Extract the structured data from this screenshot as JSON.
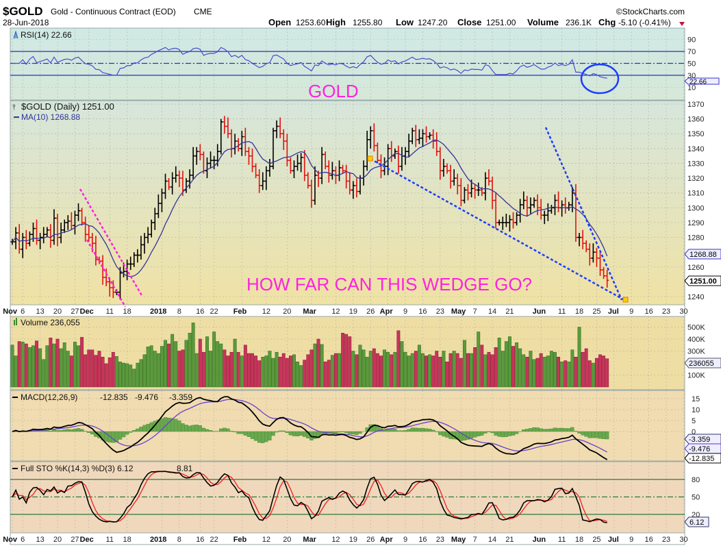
{
  "header": {
    "symbol": "$GOLD",
    "name": "Gold - Continuous Contract (EOD)",
    "exchange": "CME",
    "date": "28-Jun-2018",
    "copyright": "©StockCharts.com",
    "open_label": "Open",
    "open": "1253.60",
    "high_label": "High",
    "high": "1255.80",
    "low_label": "Low",
    "low": "1247.20",
    "close_label": "Close",
    "close": "1251.00",
    "volume_label": "Volume",
    "volume": "236.1K",
    "chg_label": "Chg",
    "chg": "-5.10 (-0.41%)"
  },
  "annotations": {
    "gold": "GOLD",
    "wedge": "HOW FAR CAN THIS WEDGE GO?"
  },
  "colors": {
    "up_bar": "#000000",
    "down_bar": "#e01010",
    "ma": "#33339a",
    "rsi": "#4a4ad0",
    "macd": "#000000",
    "signal": "#6a3fd0",
    "histogram": "#6aa84f",
    "sto_k": "#000000",
    "sto_d": "#ee2020",
    "vol_up": "#5a9a3c",
    "vol_down": "#c8345a",
    "annotation_magenta": "#ff22dd",
    "annotation_blue": "#1a3cff"
  },
  "chart_data": {
    "type": "ohlc-bar",
    "x_ticks": [
      {
        "label": "Nov",
        "date": "2017-11-01",
        "bold": true
      },
      {
        "label": "6",
        "date": "2017-11-06"
      },
      {
        "label": "13",
        "date": "2017-11-13"
      },
      {
        "label": "20",
        "date": "2017-11-20"
      },
      {
        "label": "27",
        "date": "2017-11-27"
      },
      {
        "label": "Dec",
        "date": "2017-12-01",
        "bold": true
      },
      {
        "label": "11",
        "date": "2017-12-11"
      },
      {
        "label": "18",
        "date": "2017-12-18"
      },
      {
        "label": "2018",
        "date": "2018-01-01",
        "bold": true
      },
      {
        "label": "8",
        "date": "2018-01-08"
      },
      {
        "label": "16",
        "date": "2018-01-16"
      },
      {
        "label": "22",
        "date": "2018-01-22"
      },
      {
        "label": "Feb",
        "date": "2018-02-01",
        "bold": true
      },
      {
        "label": "12",
        "date": "2018-02-12"
      },
      {
        "label": "20",
        "date": "2018-02-20"
      },
      {
        "label": "Mar",
        "date": "2018-03-01",
        "bold": true
      },
      {
        "label": "12",
        "date": "2018-03-12"
      },
      {
        "label": "19",
        "date": "2018-03-19"
      },
      {
        "label": "26",
        "date": "2018-03-26"
      },
      {
        "label": "Apr",
        "date": "2018-04-02",
        "bold": true
      },
      {
        "label": "9",
        "date": "2018-04-09"
      },
      {
        "label": "16",
        "date": "2018-04-16"
      },
      {
        "label": "23",
        "date": "2018-04-23"
      },
      {
        "label": "May",
        "date": "2018-05-01",
        "bold": true
      },
      {
        "label": "7",
        "date": "2018-05-07"
      },
      {
        "label": "14",
        "date": "2018-05-14"
      },
      {
        "label": "21",
        "date": "2018-05-21"
      },
      {
        "label": "Jun",
        "date": "2018-06-01",
        "bold": true
      },
      {
        "label": "11",
        "date": "2018-06-11"
      },
      {
        "label": "18",
        "date": "2018-06-18"
      },
      {
        "label": "25",
        "date": "2018-06-25"
      },
      {
        "label": "Jul",
        "date": "2018-07-02",
        "bold": true
      },
      {
        "label": "9",
        "date": "2018-07-09"
      },
      {
        "label": "16",
        "date": "2018-07-16"
      },
      {
        "label": "23",
        "date": "2018-07-23"
      },
      {
        "label": "30",
        "date": "2018-07-30"
      }
    ],
    "rsi": {
      "legend": "RSI(14) 22.66",
      "value_tag": "22.66",
      "ylim": [
        0,
        100
      ],
      "y_ticks": [
        "90",
        "70",
        "50",
        "30",
        "10"
      ],
      "levels": [
        70,
        50,
        30
      ]
    },
    "price": {
      "legend": "$GOLD (Daily) 1251.00",
      "ma_legend": "MA(10) 1268.88",
      "ma_tag": "1268.88",
      "close_tag": "1251.00",
      "ylim": [
        1235,
        1372
      ],
      "y_ticks": [
        "1370",
        "1360",
        "1350",
        "1340",
        "1330",
        "1320",
        "1310",
        "1300",
        "1290",
        "1280",
        "1260",
        "1240"
      ],
      "close": [
        1277,
        1283,
        1272,
        1280,
        1276,
        1282,
        1286,
        1278,
        1280,
        1282,
        1285,
        1278,
        1293,
        1280,
        1285,
        1290,
        1291,
        1288,
        1295,
        1298,
        1290,
        1282,
        1280,
        1276,
        1265,
        1264,
        1253,
        1250,
        1246,
        1243,
        1243,
        1256,
        1257,
        1262,
        1262,
        1268,
        1268,
        1275,
        1280,
        1282,
        1290,
        1296,
        1303,
        1310,
        1318,
        1314,
        1320,
        1322,
        1320,
        1312,
        1318,
        1322,
        1335,
        1338,
        1336,
        1325,
        1330,
        1332,
        1332,
        1338,
        1358,
        1355,
        1350,
        1340,
        1345,
        1340,
        1348,
        1338,
        1335,
        1328,
        1322,
        1315,
        1318,
        1325,
        1328,
        1352,
        1355,
        1350,
        1345,
        1332,
        1325,
        1328,
        1330,
        1334,
        1322,
        1315,
        1305,
        1322,
        1320,
        1336,
        1328,
        1322,
        1325,
        1322,
        1327,
        1325,
        1318,
        1312,
        1315,
        1311,
        1320,
        1328,
        1346,
        1352,
        1342,
        1332,
        1325,
        1328,
        1340,
        1335,
        1338,
        1328,
        1335,
        1338,
        1345,
        1352,
        1346,
        1347,
        1350,
        1348,
        1349,
        1345,
        1338,
        1325,
        1328,
        1325,
        1318,
        1320,
        1315,
        1305,
        1312,
        1310,
        1313,
        1312,
        1312,
        1310,
        1320,
        1318,
        1305,
        1290,
        1290,
        1290,
        1290,
        1292,
        1290,
        1295,
        1302,
        1305,
        1300,
        1302,
        1305,
        1300,
        1295,
        1295,
        1298,
        1300,
        1305,
        1300,
        1302,
        1300,
        1302,
        1310,
        1280,
        1280,
        1276,
        1272,
        1266,
        1270,
        1266,
        1258,
        1254,
        1251
      ]
    },
    "volume": {
      "legend": "Volume 236,055",
      "value_tag": "236055",
      "y_ticks": [
        "500K",
        "400K",
        "300K",
        "100K"
      ],
      "values_k": [
        350,
        260,
        380,
        375,
        360,
        330,
        345,
        385,
        320,
        230,
        345,
        410,
        360,
        400,
        320,
        370,
        300,
        260,
        375,
        345,
        415,
        270,
        310,
        310,
        265,
        300,
        250,
        195,
        245,
        290,
        255,
        210,
        200,
        195,
        185,
        150,
        200,
        230,
        270,
        335,
        345,
        300,
        280,
        340,
        390,
        360,
        440,
        380,
        300,
        310,
        390,
        450,
        535,
        280,
        400,
        290,
        420,
        300,
        460,
        380,
        360,
        310,
        260,
        290,
        400,
        290,
        260,
        350,
        280,
        280,
        260,
        220,
        250,
        260,
        300,
        240,
        290,
        250,
        280,
        240,
        260,
        270,
        210,
        180,
        225,
        270,
        310,
        360,
        400,
        355,
        210,
        225,
        265,
        280,
        280,
        450,
        440,
        420,
        300,
        270,
        350,
        310,
        250,
        300,
        320,
        280,
        260,
        310,
        290,
        270,
        290,
        470,
        380,
        290,
        260,
        280,
        300,
        350,
        280,
        260,
        270,
        260,
        300,
        250,
        300,
        210,
        280,
        300,
        280,
        240,
        390,
        280,
        280,
        330,
        460,
        350,
        270,
        290,
        270,
        330,
        410,
        300,
        380,
        420,
        340,
        370,
        320,
        270,
        250,
        300,
        230,
        240,
        280,
        250,
        260,
        300,
        290,
        250,
        210,
        220,
        210,
        310,
        250,
        500,
        290,
        320,
        220,
        200,
        240,
        270,
        260,
        236
      ]
    },
    "macd": {
      "legend_name": "MACD(12,26,9)",
      "legend_macd": "-12.835",
      "legend_signal": "-9.476",
      "legend_hist": "-3.359",
      "y_ticks": [
        "15",
        "10",
        "5",
        "0"
      ],
      "tags": {
        "hist": "-3.359",
        "signal": "-9.476",
        "macd": "-12.835"
      }
    },
    "sto": {
      "legend_name": "Full STO %K(14,3) %D(3) 6.12",
      "legend_d": "8.81",
      "value_tag": "6.12",
      "y_ticks": [
        "80",
        "50",
        "20"
      ],
      "levels": [
        80,
        50,
        20
      ]
    }
  }
}
